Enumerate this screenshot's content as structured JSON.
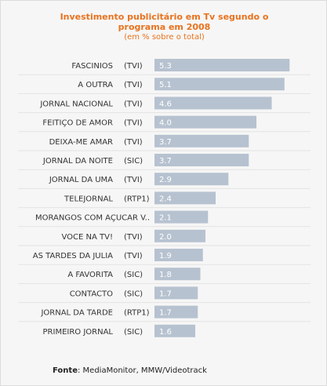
{
  "title": {
    "lines": [
      "Investimento publicitário em Tv segundo o",
      "programa em 2008"
    ],
    "subtitle": "(em % sobre o total)"
  },
  "source": {
    "label": "Fonte",
    "text": ": MediaMonitor, MMW/Videotrack"
  },
  "colors": {
    "bar": "#b7c2d0",
    "bar_value": "#ffffff",
    "title": "#e8731f",
    "label": "#333333",
    "separator": "#e3e3e3",
    "background": "#f6f6f6"
  },
  "chart_data": {
    "type": "bar",
    "orientation": "horizontal",
    "xlim": [
      0,
      6
    ],
    "grid": false,
    "categories": [
      {
        "program": "FASCINIOS",
        "channel": "(TVI)"
      },
      {
        "program": "A OUTRA",
        "channel": "(TVI)"
      },
      {
        "program": "JORNAL NACIONAL",
        "channel": "(TVI)"
      },
      {
        "program": "FEITIÇO DE AMOR",
        "channel": "(TVI)"
      },
      {
        "program": "DEIXA-ME AMAR",
        "channel": "(TVI)"
      },
      {
        "program": "JORNAL DA NOITE",
        "channel": "(SIC)"
      },
      {
        "program": "JORNAL DA UMA",
        "channel": "(TVI)"
      },
      {
        "program": "TELEJORNAL",
        "channel": "(RTP1)"
      },
      {
        "program": "MORANGOS COM AÇUCAR V..",
        "channel": ""
      },
      {
        "program": "VOCE NA TV!",
        "channel": "(TVI)"
      },
      {
        "program": "AS TARDES DA JULIA",
        "channel": "(TVI)"
      },
      {
        "program": "A FAVORITA",
        "channel": "(SIC)"
      },
      {
        "program": "CONTACTO",
        "channel": "(SIC)"
      },
      {
        "program": "JORNAL DA TARDE",
        "channel": "(RTP1)"
      },
      {
        "program": "PRIMEIRO JORNAL",
        "channel": "(SIC)"
      }
    ],
    "values": [
      5.3,
      5.1,
      4.6,
      4.0,
      3.7,
      3.7,
      2.9,
      2.4,
      2.1,
      2.0,
      1.9,
      1.8,
      1.7,
      1.7,
      1.6
    ],
    "value_labels": [
      "5.3",
      "5.1",
      "4.6",
      "4.0",
      "3.7",
      "3.7",
      "2.9",
      "2.4",
      "2.1",
      "2.0",
      "1.9",
      "1.8",
      "1.7",
      "1.7",
      "1.6"
    ]
  }
}
